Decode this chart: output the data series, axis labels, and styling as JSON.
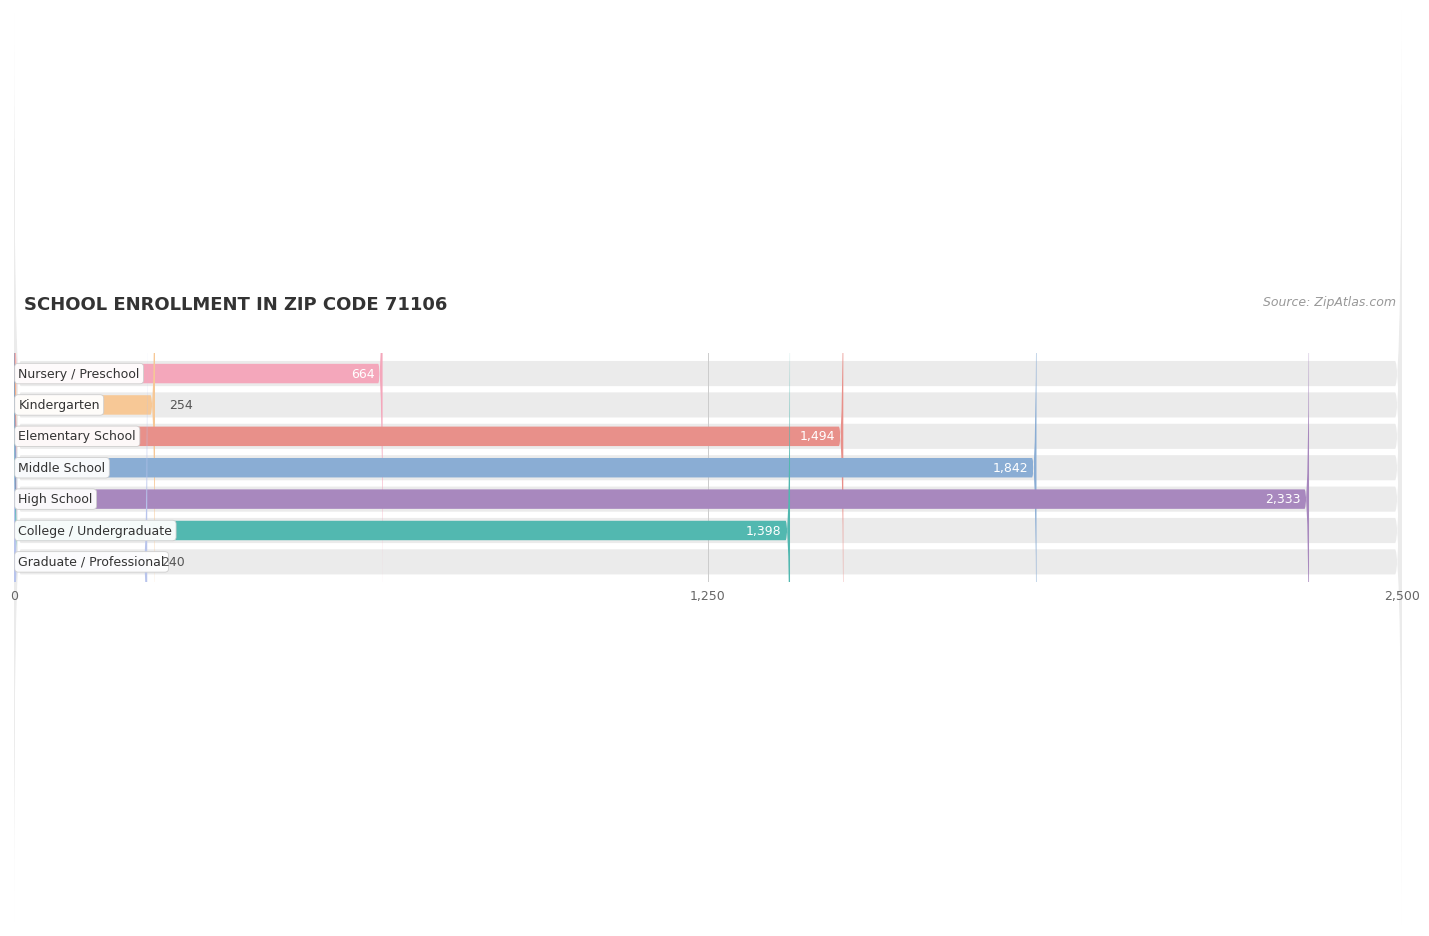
{
  "title": "SCHOOL ENROLLMENT IN ZIP CODE 71106",
  "source": "Source: ZipAtlas.com",
  "categories": [
    "Nursery / Preschool",
    "Kindergarten",
    "Elementary School",
    "Middle School",
    "High School",
    "College / Undergraduate",
    "Graduate / Professional"
  ],
  "values": [
    664,
    254,
    1494,
    1842,
    2333,
    1398,
    240
  ],
  "bar_colors": [
    "#f4a7bb",
    "#f7c896",
    "#e8908a",
    "#8aadd4",
    "#a888be",
    "#52b8b0",
    "#b8c4ec"
  ],
  "xlim": [
    0,
    2500
  ],
  "xticks": [
    0,
    1250,
    2500
  ],
  "xtick_labels": [
    "0",
    "1,250",
    "2,500"
  ],
  "title_fontsize": 13,
  "source_fontsize": 9,
  "bar_label_fontsize": 9,
  "tick_fontsize": 9,
  "category_fontsize": 9,
  "row_bg_color": "#ebebeb",
  "row_bg_light": "#f5f5f5",
  "inside_label_threshold": 500
}
